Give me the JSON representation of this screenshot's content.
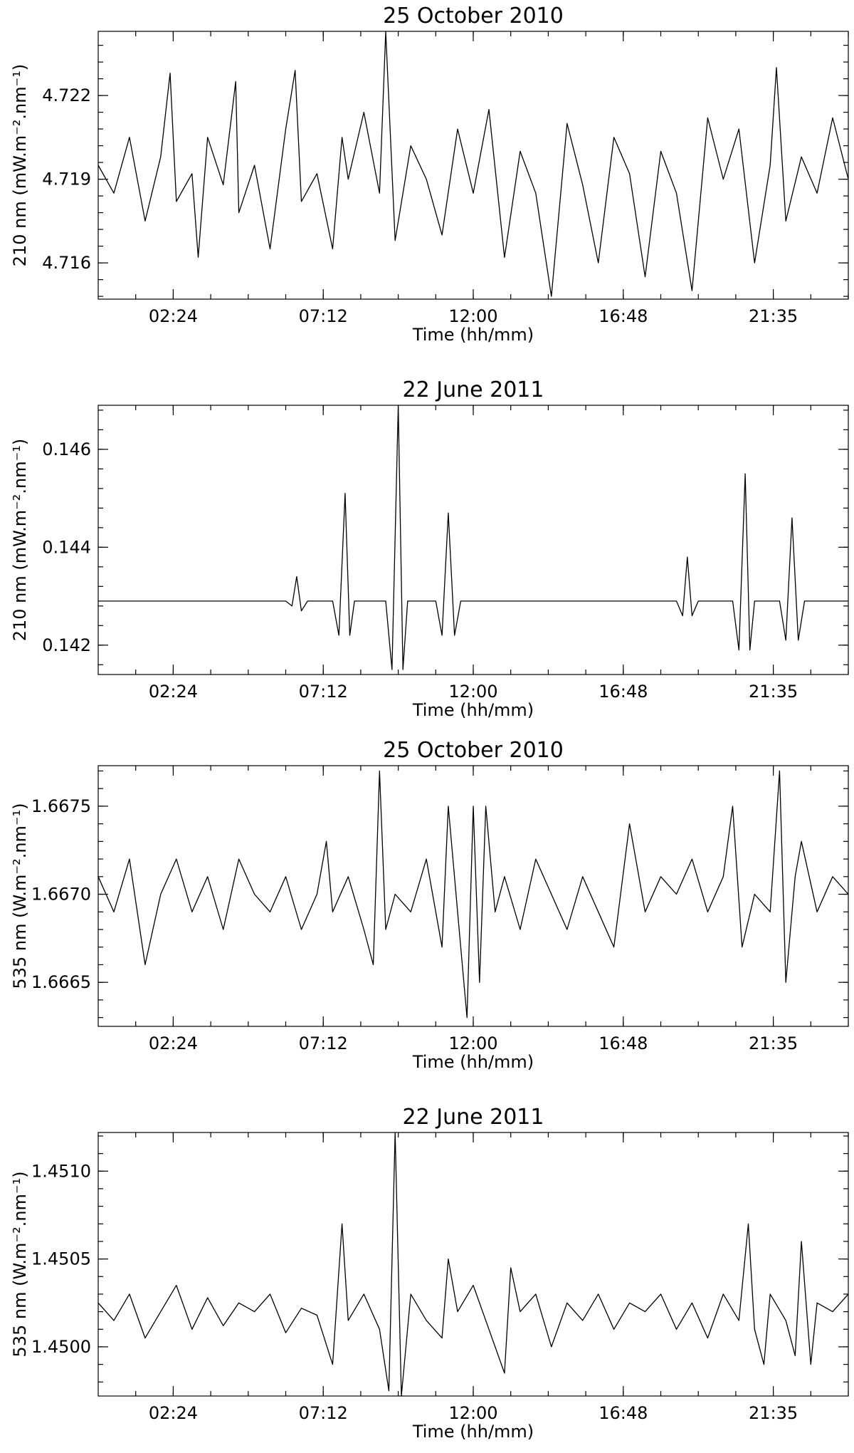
{
  "chart_data": [
    {
      "type": "line",
      "title": "25 October 2010",
      "xlabel": "Time (hh/mm)",
      "ylabel": "210 nm (mW.m⁻².nm⁻¹)",
      "x_ticks": [
        "02:24",
        "07:12",
        "12:00",
        "16:48",
        "21:35"
      ],
      "x_tick_hours": [
        2.4,
        7.2,
        12.0,
        16.8,
        21.6
      ],
      "xlim_hours": [
        0,
        24
      ],
      "y_ticks": [
        "4.716",
        "4.719",
        "4.722"
      ],
      "y_tick_values": [
        4.716,
        4.719,
        4.722
      ],
      "ylim": [
        4.7147,
        4.7243
      ],
      "series": [
        {
          "x_hours": [
            0.0,
            0.5,
            1.0,
            1.5,
            2.0,
            2.3,
            2.5,
            3.0,
            3.2,
            3.5,
            4.0,
            4.4,
            4.5,
            5.0,
            5.5,
            6.0,
            6.3,
            6.5,
            7.0,
            7.5,
            7.8,
            8.0,
            8.5,
            9.0,
            9.2,
            9.5,
            10.0,
            10.5,
            11.0,
            11.5,
            12.0,
            12.5,
            13.0,
            13.5,
            14.0,
            14.5,
            15.0,
            15.5,
            16.0,
            16.5,
            17.0,
            17.5,
            18.0,
            18.5,
            19.0,
            19.5,
            20.0,
            20.5,
            21.0,
            21.5,
            21.7,
            22.0,
            22.5,
            23.0,
            23.5,
            24.0
          ],
          "values": [
            4.7195,
            4.7185,
            4.7205,
            4.7175,
            4.7198,
            4.7228,
            4.7182,
            4.7192,
            4.7162,
            4.7205,
            4.7188,
            4.7225,
            4.7178,
            4.7195,
            4.7165,
            4.7208,
            4.7229,
            4.7182,
            4.7192,
            4.7165,
            4.7205,
            4.719,
            4.7214,
            4.7185,
            4.7243,
            4.7168,
            4.7202,
            4.719,
            4.717,
            4.7208,
            4.7185,
            4.7215,
            4.7162,
            4.72,
            4.7185,
            4.7148,
            4.721,
            4.7188,
            4.716,
            4.7205,
            4.7192,
            4.7155,
            4.72,
            4.7185,
            4.715,
            4.7212,
            4.719,
            4.7208,
            4.716,
            4.7195,
            4.723,
            4.7175,
            4.7198,
            4.7185,
            4.7212,
            4.719
          ]
        }
      ]
    },
    {
      "type": "line",
      "title": "22 June 2011",
      "xlabel": "Time (hh/mm)",
      "ylabel": "210 nm (mW.m⁻².nm⁻¹)",
      "x_ticks": [
        "02:24",
        "07:12",
        "12:00",
        "16:48",
        "21:35"
      ],
      "x_tick_hours": [
        2.4,
        7.2,
        12.0,
        16.8,
        21.6
      ],
      "xlim_hours": [
        0,
        24
      ],
      "y_ticks": [
        "0.142",
        "0.144",
        "0.146"
      ],
      "y_tick_values": [
        0.142,
        0.144,
        0.146
      ],
      "ylim": [
        0.1414,
        0.1469
      ],
      "series": [
        {
          "x_hours": [
            0.0,
            1.0,
            2.0,
            3.0,
            4.0,
            5.0,
            6.0,
            6.2,
            6.35,
            6.5,
            6.7,
            7.5,
            7.7,
            7.9,
            8.05,
            8.2,
            8.4,
            9.2,
            9.4,
            9.6,
            9.75,
            9.9,
            10.1,
            10.8,
            11.0,
            11.2,
            11.4,
            11.6,
            11.8,
            13.0,
            14.0,
            15.0,
            16.0,
            17.0,
            18.0,
            18.5,
            18.7,
            18.85,
            19.0,
            19.2,
            20.0,
            20.3,
            20.5,
            20.7,
            20.85,
            21.0,
            21.2,
            21.8,
            22.0,
            22.2,
            22.4,
            22.6,
            22.8,
            23.5,
            24.0
          ],
          "values": [
            0.1429,
            0.1429,
            0.1429,
            0.1429,
            0.1429,
            0.1429,
            0.1429,
            0.1428,
            0.1434,
            0.1427,
            0.1429,
            0.1429,
            0.1422,
            0.1451,
            0.1422,
            0.1429,
            0.1429,
            0.1429,
            0.1415,
            0.1469,
            0.1415,
            0.1429,
            0.1429,
            0.1429,
            0.1422,
            0.1447,
            0.1422,
            0.1429,
            0.1429,
            0.1429,
            0.1429,
            0.1429,
            0.1429,
            0.1429,
            0.1429,
            0.1429,
            0.1426,
            0.1438,
            0.1426,
            0.1429,
            0.1429,
            0.1429,
            0.1419,
            0.1455,
            0.1419,
            0.1429,
            0.1429,
            0.1429,
            0.1421,
            0.1446,
            0.1421,
            0.1429,
            0.1429,
            0.1429,
            0.1429
          ]
        }
      ]
    },
    {
      "type": "line",
      "title": "25 October 2010",
      "xlabel": "Time (hh/mm)",
      "ylabel": "535 nm (W.m⁻².nm⁻¹)",
      "x_ticks": [
        "02:24",
        "07:12",
        "12:00",
        "16:48",
        "21:35"
      ],
      "x_tick_hours": [
        2.4,
        7.2,
        12.0,
        16.8,
        21.6
      ],
      "xlim_hours": [
        0,
        24
      ],
      "y_ticks": [
        "1.6665",
        "1.6670",
        "1.6675"
      ],
      "y_tick_values": [
        1.6665,
        1.667,
        1.6675
      ],
      "ylim": [
        1.66625,
        1.66773
      ],
      "series": [
        {
          "x_hours": [
            0.0,
            0.5,
            1.0,
            1.5,
            2.0,
            2.5,
            3.0,
            3.5,
            4.0,
            4.5,
            5.0,
            5.5,
            6.0,
            6.5,
            7.0,
            7.3,
            7.5,
            8.0,
            8.5,
            8.8,
            9.0,
            9.2,
            9.5,
            10.0,
            10.5,
            11.0,
            11.2,
            11.5,
            11.8,
            12.0,
            12.2,
            12.4,
            12.7,
            13.0,
            13.5,
            14.0,
            14.5,
            15.0,
            15.5,
            16.0,
            16.5,
            17.0,
            17.5,
            18.0,
            18.5,
            19.0,
            19.5,
            20.0,
            20.3,
            20.6,
            21.0,
            21.5,
            21.8,
            22.0,
            22.3,
            22.5,
            23.0,
            23.5,
            24.0
          ],
          "values": [
            1.6671,
            1.6669,
            1.6672,
            1.6666,
            1.667,
            1.6672,
            1.6669,
            1.6671,
            1.6668,
            1.6672,
            1.667,
            1.6669,
            1.6671,
            1.6668,
            1.667,
            1.6673,
            1.6669,
            1.6671,
            1.6668,
            1.6666,
            1.6677,
            1.6668,
            1.667,
            1.6669,
            1.6672,
            1.6667,
            1.6675,
            1.6669,
            1.6663,
            1.6675,
            1.6665,
            1.6675,
            1.6669,
            1.6671,
            1.6668,
            1.6672,
            1.667,
            1.6668,
            1.6671,
            1.6669,
            1.6667,
            1.6674,
            1.6669,
            1.6671,
            1.667,
            1.6672,
            1.6669,
            1.6671,
            1.6675,
            1.6667,
            1.667,
            1.6669,
            1.6677,
            1.6665,
            1.6671,
            1.6673,
            1.6669,
            1.6671,
            1.667
          ]
        }
      ]
    },
    {
      "type": "line",
      "title": "22 June 2011",
      "xlabel": "Time (hh/mm)",
      "ylabel": "535 nm (W.m⁻².nm⁻¹)",
      "x_ticks": [
        "02:24",
        "07:12",
        "12:00",
        "16:48",
        "21:35"
      ],
      "x_tick_hours": [
        2.4,
        7.2,
        12.0,
        16.8,
        21.6
      ],
      "xlim_hours": [
        0,
        24
      ],
      "y_ticks": [
        "1.4500",
        "1.4505",
        "1.4510"
      ],
      "y_tick_values": [
        1.45,
        1.4505,
        1.451
      ],
      "ylim": [
        1.44972,
        1.45122
      ],
      "series": [
        {
          "x_hours": [
            0.0,
            0.5,
            1.0,
            1.5,
            2.0,
            2.5,
            3.0,
            3.5,
            4.0,
            4.5,
            5.0,
            5.5,
            6.0,
            6.5,
            7.0,
            7.5,
            7.8,
            8.0,
            8.5,
            9.0,
            9.3,
            9.5,
            9.7,
            10.0,
            10.5,
            11.0,
            11.2,
            11.5,
            12.0,
            12.5,
            13.0,
            13.2,
            13.5,
            14.0,
            14.5,
            15.0,
            15.5,
            16.0,
            16.5,
            17.0,
            17.5,
            18.0,
            18.5,
            19.0,
            19.5,
            20.0,
            20.5,
            20.8,
            21.0,
            21.3,
            21.5,
            22.0,
            22.3,
            22.5,
            22.8,
            23.0,
            23.5,
            24.0
          ],
          "values": [
            1.45025,
            1.45015,
            1.4503,
            1.45005,
            1.4502,
            1.45035,
            1.4501,
            1.45028,
            1.45012,
            1.45025,
            1.4502,
            1.4503,
            1.45008,
            1.45022,
            1.45018,
            1.4499,
            1.4507,
            1.45015,
            1.4503,
            1.4501,
            1.44975,
            1.45122,
            1.44972,
            1.4503,
            1.45015,
            1.45005,
            1.4505,
            1.4502,
            1.45035,
            1.4501,
            1.44985,
            1.45045,
            1.4502,
            1.4503,
            1.45,
            1.45025,
            1.45015,
            1.4503,
            1.4501,
            1.45025,
            1.4502,
            1.4503,
            1.4501,
            1.45025,
            1.45005,
            1.4503,
            1.45015,
            1.4507,
            1.4501,
            1.4499,
            1.4503,
            1.45015,
            1.44995,
            1.4506,
            1.4499,
            1.45025,
            1.4502,
            1.4503
          ]
        }
      ]
    }
  ]
}
